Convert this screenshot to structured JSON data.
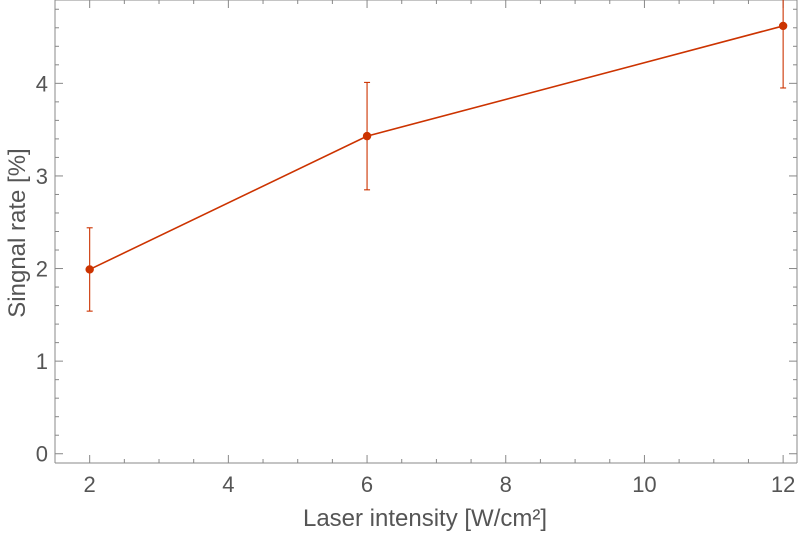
{
  "chart_data": {
    "type": "line",
    "xlabel": "Laser intensity [W/cm²]",
    "ylabel": "Singnal rate [%]",
    "xlim": [
      1.5,
      12.2
    ],
    "ylim": [
      -0.1,
      4.9
    ],
    "x_ticks": [
      2,
      4,
      6,
      8,
      10,
      12
    ],
    "x_tick_labels": [
      "2",
      "4",
      "6",
      "8",
      "10",
      "12"
    ],
    "y_ticks": [
      0,
      1,
      2,
      3,
      4
    ],
    "y_tick_labels": [
      "0",
      "1",
      "2",
      "3",
      "4"
    ],
    "grid": false,
    "series": [
      {
        "x": [
          2,
          6,
          12
        ],
        "y": [
          1.99,
          3.43,
          4.62
        ],
        "error": [
          0.45,
          0.58,
          0.67
        ],
        "color": "#cc3300"
      }
    ]
  }
}
